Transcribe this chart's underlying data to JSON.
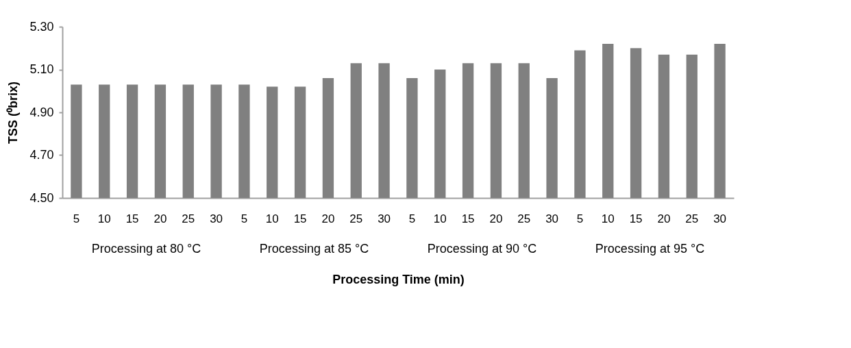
{
  "chart_data": {
    "type": "bar",
    "xlabel": "Processing Time (min)",
    "ylabel": "TSS (⁰brix)",
    "categories": [
      "5",
      "10",
      "15",
      "20",
      "25",
      "30",
      "5",
      "10",
      "15",
      "20",
      "25",
      "30",
      "5",
      "10",
      "15",
      "20",
      "25",
      "30",
      "5",
      "10",
      "15",
      "20",
      "25",
      "30"
    ],
    "values": [
      5.03,
      5.03,
      5.03,
      5.03,
      5.03,
      5.03,
      5.03,
      5.02,
      5.02,
      5.06,
      5.13,
      5.13,
      5.06,
      5.1,
      5.13,
      5.13,
      5.13,
      5.06,
      5.19,
      5.22,
      5.2,
      5.17,
      5.17,
      5.22
    ],
    "color": "#808080",
    "ylim": [
      4.5,
      5.3
    ],
    "yticks": [
      {
        "value": 4.5,
        "label": "4.50"
      },
      {
        "value": 4.7,
        "label": "4.70"
      },
      {
        "value": 4.9,
        "label": "4.90"
      },
      {
        "value": 5.1,
        "label": "5.10"
      },
      {
        "value": 5.3,
        "label": "5.30"
      }
    ],
    "annotations": [
      "Processing at 80 °C",
      "Processing at 85 °C",
      "Processing at 90 °C",
      "Processing at 95 °C"
    ]
  }
}
